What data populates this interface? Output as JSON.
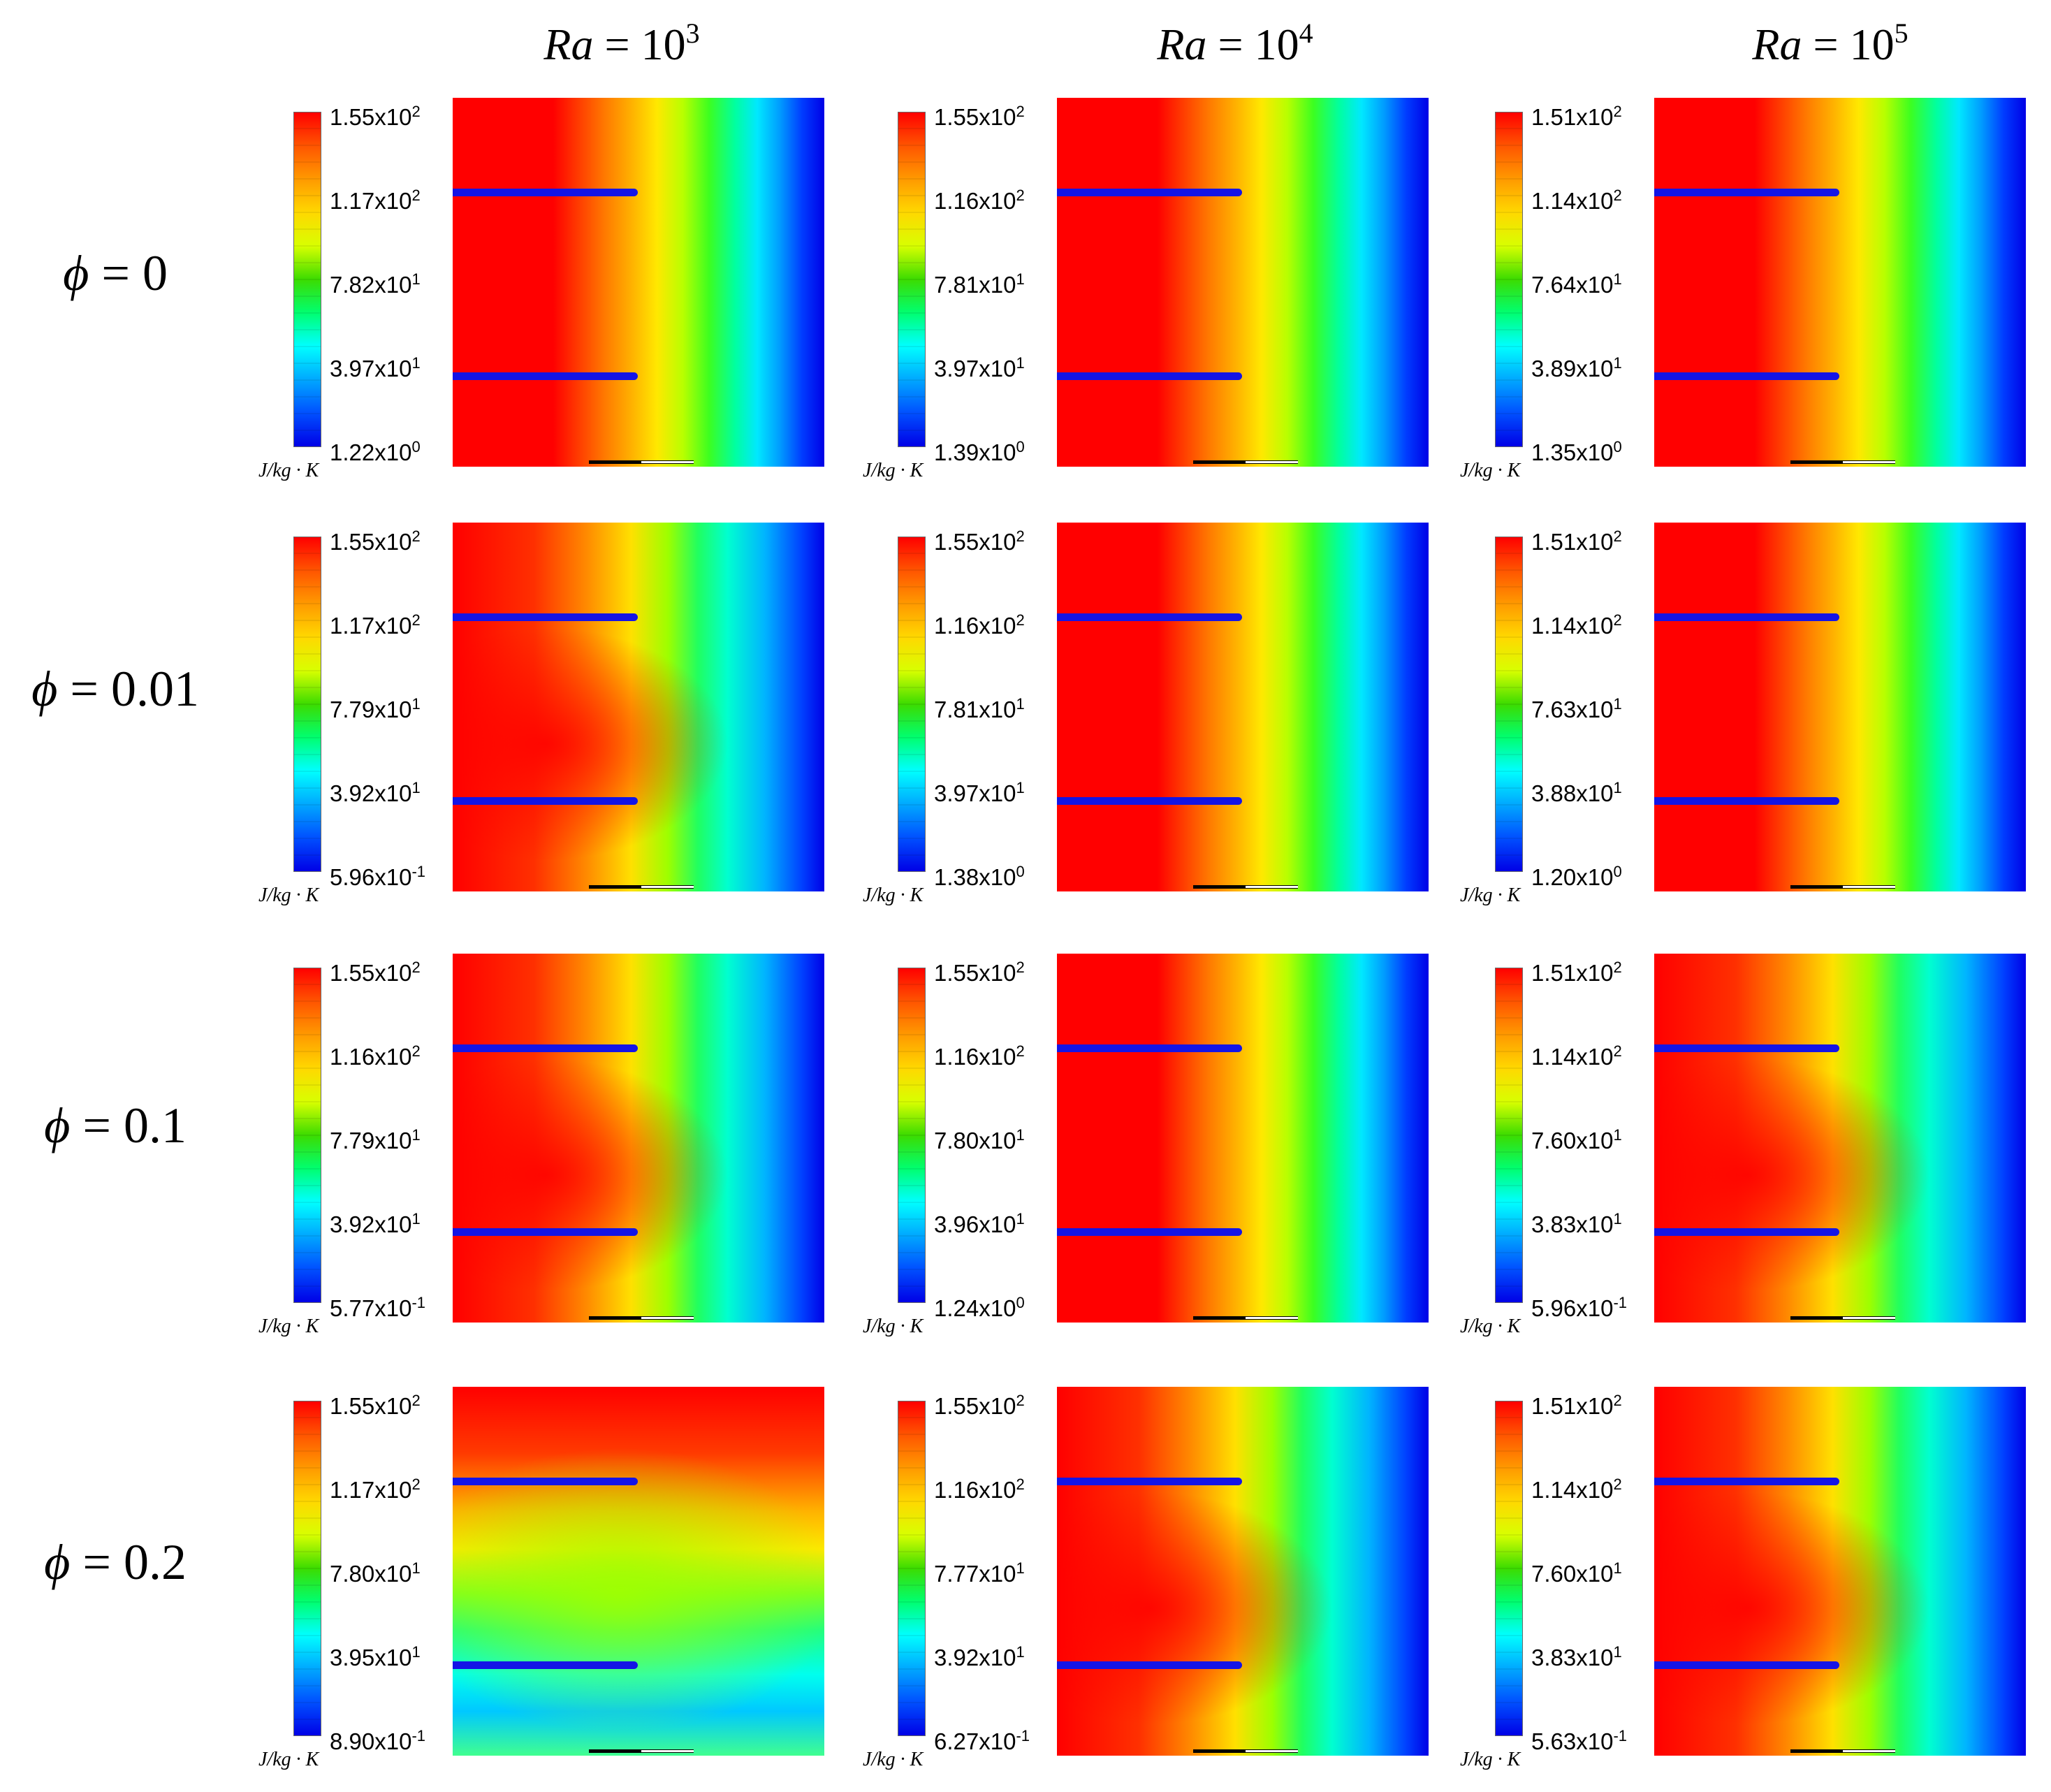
{
  "columns": [
    {
      "ra_label": "Ra",
      "eq": " = ",
      "base": "10",
      "exp": "3"
    },
    {
      "ra_label": "Ra",
      "eq": " = ",
      "base": "10",
      "exp": "4"
    },
    {
      "ra_label": "Ra",
      "eq": " = ",
      "base": "10",
      "exp": "5"
    }
  ],
  "rows": [
    {
      "phi_symbol": "ϕ",
      "eq": " = ",
      "value": "0"
    },
    {
      "phi_symbol": "ϕ",
      "eq": " = ",
      "value": "0.01"
    },
    {
      "phi_symbol": "ϕ",
      "eq": " = ",
      "value": "0.1"
    },
    {
      "phi_symbol": "ϕ",
      "eq": " = ",
      "value": "0.2"
    }
  ],
  "unit": "J/kg · K",
  "panels": [
    [
      {
        "ticks": [
          {
            "m": "1.55x10",
            "e": "2"
          },
          {
            "m": "1.17x10",
            "e": "2"
          },
          {
            "m": "7.82x10",
            "e": "1"
          },
          {
            "m": "3.97x10",
            "e": "1"
          },
          {
            "m": "1.22x10",
            "e": "0"
          }
        ]
      },
      {
        "ticks": [
          {
            "m": "1.55x10",
            "e": "2"
          },
          {
            "m": "1.16x10",
            "e": "2"
          },
          {
            "m": "7.81x10",
            "e": "1"
          },
          {
            "m": "3.97x10",
            "e": "1"
          },
          {
            "m": "1.39x10",
            "e": "0"
          }
        ]
      },
      {
        "ticks": [
          {
            "m": "1.51x10",
            "e": "2"
          },
          {
            "m": "1.14x10",
            "e": "2"
          },
          {
            "m": "7.64x10",
            "e": "1"
          },
          {
            "m": "3.89x10",
            "e": "1"
          },
          {
            "m": "1.35x10",
            "e": "0"
          }
        ]
      }
    ],
    [
      {
        "ticks": [
          {
            "m": "1.55x10",
            "e": "2"
          },
          {
            "m": "1.17x10",
            "e": "2"
          },
          {
            "m": "7.79x10",
            "e": "1"
          },
          {
            "m": "3.92x10",
            "e": "1"
          },
          {
            "m": "5.96x10",
            "e": "-1"
          }
        ]
      },
      {
        "ticks": [
          {
            "m": "1.55x10",
            "e": "2"
          },
          {
            "m": "1.16x10",
            "e": "2"
          },
          {
            "m": "7.81x10",
            "e": "1"
          },
          {
            "m": "3.97x10",
            "e": "1"
          },
          {
            "m": "1.38x10",
            "e": "0"
          }
        ]
      },
      {
        "ticks": [
          {
            "m": "1.51x10",
            "e": "2"
          },
          {
            "m": "1.14x10",
            "e": "2"
          },
          {
            "m": "7.63x10",
            "e": "1"
          },
          {
            "m": "3.88x10",
            "e": "1"
          },
          {
            "m": "1.20x10",
            "e": "0"
          }
        ]
      }
    ],
    [
      {
        "ticks": [
          {
            "m": "1.55x10",
            "e": "2"
          },
          {
            "m": "1.16x10",
            "e": "2"
          },
          {
            "m": "7.79x10",
            "e": "1"
          },
          {
            "m": "3.92x10",
            "e": "1"
          },
          {
            "m": "5.77x10",
            "e": "-1"
          }
        ]
      },
      {
        "ticks": [
          {
            "m": "1.55x10",
            "e": "2"
          },
          {
            "m": "1.16x10",
            "e": "2"
          },
          {
            "m": "7.80x10",
            "e": "1"
          },
          {
            "m": "3.96x10",
            "e": "1"
          },
          {
            "m": "1.24x10",
            "e": "0"
          }
        ]
      },
      {
        "ticks": [
          {
            "m": "1.51x10",
            "e": "2"
          },
          {
            "m": "1.14x10",
            "e": "2"
          },
          {
            "m": "7.60x10",
            "e": "1"
          },
          {
            "m": "3.83x10",
            "e": "1"
          },
          {
            "m": "5.96x10",
            "e": "-1"
          }
        ]
      }
    ],
    [
      {
        "ticks": [
          {
            "m": "1.55x10",
            "e": "2"
          },
          {
            "m": "1.17x10",
            "e": "2"
          },
          {
            "m": "7.80x10",
            "e": "1"
          },
          {
            "m": "3.95x10",
            "e": "1"
          },
          {
            "m": "8.90x10",
            "e": "-1"
          }
        ]
      },
      {
        "ticks": [
          {
            "m": "1.55x10",
            "e": "2"
          },
          {
            "m": "1.16x10",
            "e": "2"
          },
          {
            "m": "7.77x10",
            "e": "1"
          },
          {
            "m": "3.92x10",
            "e": "1"
          },
          {
            "m": "6.27x10",
            "e": "-1"
          }
        ]
      },
      {
        "ticks": [
          {
            "m": "1.51x10",
            "e": "2"
          },
          {
            "m": "1.14x10",
            "e": "2"
          },
          {
            "m": "7.60x10",
            "e": "1"
          },
          {
            "m": "3.83x10",
            "e": "1"
          },
          {
            "m": "5.63x10",
            "e": "-1"
          }
        ]
      }
    ]
  ]
}
